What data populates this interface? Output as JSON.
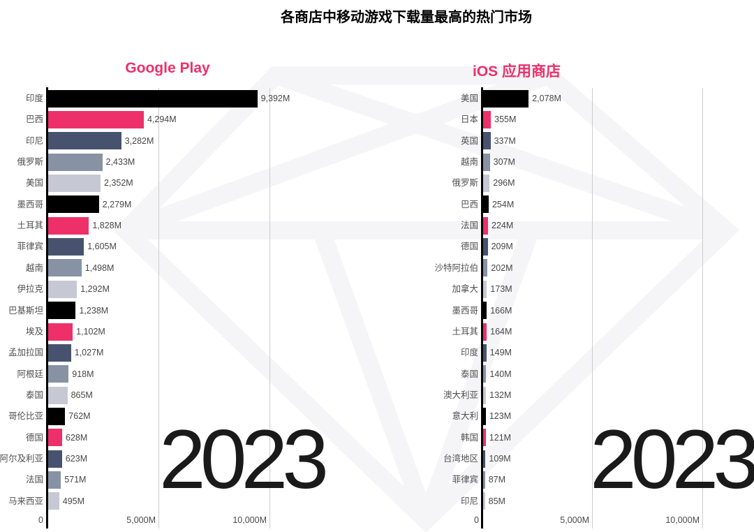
{
  "page": {
    "title": "各商店中移动游戏下载量最高的热门市场",
    "year": "2023"
  },
  "palette": {
    "accent_pink": "#ED3069",
    "bar_colors": [
      "#000000",
      "#ED3069",
      "#47536E",
      "#8793A5",
      "#C6C9D3"
    ],
    "gridline": "#cccccc",
    "axis_line": "#000000",
    "watermark": "#f5f5f7"
  },
  "chart_data": [
    {
      "type": "bar",
      "orientation": "horizontal",
      "title": "Google Play",
      "unit": "M",
      "xlim": [
        0,
        10000
      ],
      "x_ticks": [
        "0",
        "5,000M",
        "10,000M"
      ],
      "grid": "vertical",
      "year_label": "2023",
      "categories": [
        "印度",
        "巴西",
        "印尼",
        "俄罗斯",
        "美国",
        "墨西哥",
        "土耳其",
        "菲律宾",
        "越南",
        "伊拉克",
        "巴基斯坦",
        "埃及",
        "孟加拉国",
        "阿根廷",
        "泰国",
        "哥伦比亚",
        "德国",
        "阿尔及利亚",
        "法国",
        "马来西亚"
      ],
      "values": [
        9392,
        4294,
        3282,
        2433,
        2352,
        2279,
        1828,
        1605,
        1498,
        1292,
        1238,
        1102,
        1027,
        918,
        865,
        762,
        628,
        623,
        571,
        495
      ],
      "value_labels": [
        "9,392M",
        "4,294M",
        "3,282M",
        "2,433M",
        "2,352M",
        "2,279M",
        "1,828M",
        "1,605M",
        "1,498M",
        "1,292M",
        "1,238M",
        "1,102M",
        "1,027M",
        "918M",
        "865M",
        "762M",
        "628M",
        "623M",
        "571M",
        "495M"
      ]
    },
    {
      "type": "bar",
      "orientation": "horizontal",
      "title": "iOS 应用商店",
      "unit": "M",
      "xlim": [
        0,
        10000
      ],
      "x_ticks": [
        "0",
        "5,000M",
        "10,000M"
      ],
      "grid": "vertical",
      "year_label": "2023",
      "categories": [
        "美国",
        "日本",
        "英国",
        "越南",
        "俄罗斯",
        "巴西",
        "法国",
        "德国",
        "沙特阿拉伯",
        "加拿大",
        "墨西哥",
        "土耳其",
        "印度",
        "泰国",
        "澳大利亚",
        "意大利",
        "韩国",
        "台湾地区",
        "菲律宾",
        "印尼"
      ],
      "values": [
        2078,
        355,
        337,
        307,
        296,
        254,
        224,
        209,
        202,
        173,
        166,
        164,
        149,
        140,
        132,
        123,
        121,
        109,
        87,
        85
      ],
      "value_labels": [
        "2,078M",
        "355M",
        "337M",
        "307M",
        "296M",
        "254M",
        "224M",
        "209M",
        "202M",
        "173M",
        "166M",
        "164M",
        "149M",
        "140M",
        "132M",
        "123M",
        "121M",
        "109M",
        "87M",
        "85M"
      ]
    }
  ]
}
